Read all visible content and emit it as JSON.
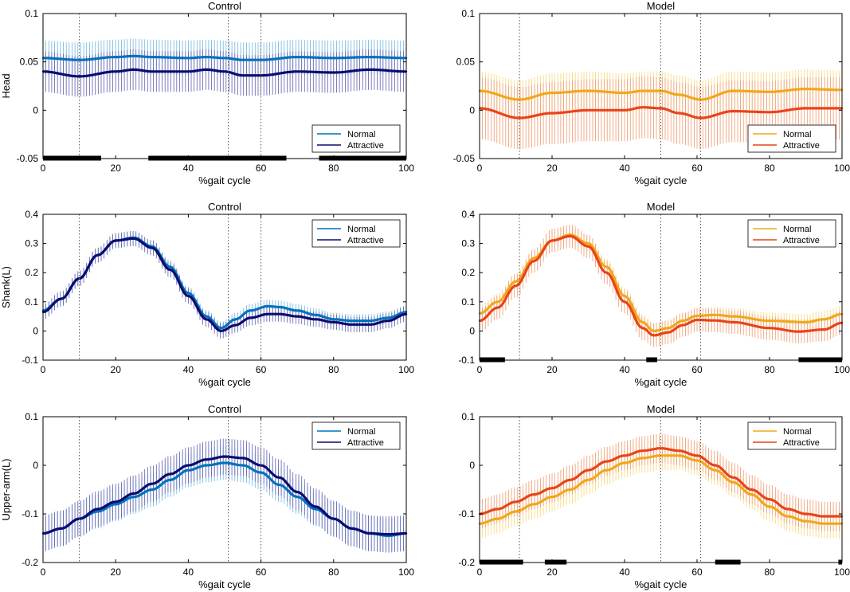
{
  "colors": {
    "control_normal": "#0072bd",
    "control_normal_band": "#6fb6de",
    "control_attractive": "#0c0c6e",
    "control_attractive_band": "#5e5eb0",
    "model_normal": "#f0a81a",
    "model_normal_band": "#f5d77a",
    "model_attractive": "#e8441a",
    "model_attractive_band": "#ee9a6e",
    "marker": "#b0b0b0",
    "bar": "#000000"
  },
  "chart_data": [
    {
      "type": "line",
      "title": "Control",
      "xlabel": "%gait cycle",
      "ylabel": "Head",
      "xlim": [
        0,
        100
      ],
      "ylim": [
        -0.05,
        0.1
      ],
      "xticks": [
        0,
        20,
        40,
        60,
        80,
        100
      ],
      "yticks": [
        -0.05,
        0,
        0.05,
        0.1
      ],
      "ytick_labels": [
        "-0.05",
        "0",
        "0.05",
        "0.1"
      ],
      "legend": {
        "position": "bottom-right",
        "entries": [
          "Normal",
          "Attractive"
        ]
      },
      "vlines": [
        10,
        51,
        60
      ],
      "sig_bars": [
        [
          0,
          16
        ],
        [
          29,
          67
        ],
        [
          76,
          100
        ]
      ],
      "series": [
        {
          "name": "Normal",
          "color_key": "control_normal",
          "band_key": "control_normal_band",
          "x": [
            0,
            10,
            20,
            25,
            30,
            40,
            45,
            50,
            55,
            60,
            70,
            80,
            90,
            100
          ],
          "y": [
            0.054,
            0.052,
            0.055,
            0.056,
            0.055,
            0.054,
            0.055,
            0.054,
            0.052,
            0.052,
            0.055,
            0.054,
            0.055,
            0.054
          ],
          "sd": 0.018
        },
        {
          "name": "Attractive",
          "color_key": "control_attractive",
          "band_key": "control_attractive_band",
          "x": [
            0,
            10,
            20,
            25,
            30,
            40,
            45,
            50,
            55,
            60,
            70,
            80,
            90,
            100
          ],
          "y": [
            0.04,
            0.035,
            0.04,
            0.042,
            0.04,
            0.04,
            0.042,
            0.04,
            0.036,
            0.036,
            0.04,
            0.039,
            0.042,
            0.04
          ],
          "sd": 0.021
        }
      ]
    },
    {
      "type": "line",
      "title": "Model",
      "xlabel": "%gait cycle",
      "ylabel": "",
      "xlim": [
        0,
        100
      ],
      "ylim": [
        -0.05,
        0.1
      ],
      "xticks": [
        0,
        20,
        40,
        60,
        80,
        100
      ],
      "yticks": [
        -0.05,
        0,
        0.05,
        0.1
      ],
      "ytick_labels": [
        "-0.05",
        "0",
        "0.05",
        "0.1"
      ],
      "legend": {
        "position": "bottom-right",
        "entries": [
          "Normal",
          "Attractive"
        ]
      },
      "vlines": [
        11,
        50,
        61
      ],
      "sig_bars": [],
      "series": [
        {
          "name": "Normal",
          "color_key": "model_normal",
          "band_key": "model_normal_band",
          "x": [
            0,
            11,
            20,
            30,
            40,
            45,
            50,
            55,
            61,
            70,
            80,
            90,
            100
          ],
          "y": [
            0.02,
            0.011,
            0.018,
            0.02,
            0.018,
            0.02,
            0.02,
            0.016,
            0.011,
            0.02,
            0.019,
            0.022,
            0.021
          ],
          "sd": 0.02
        },
        {
          "name": "Attractive",
          "color_key": "model_attractive",
          "band_key": "model_attractive_band",
          "x": [
            0,
            11,
            20,
            30,
            40,
            45,
            50,
            55,
            61,
            70,
            80,
            90,
            100
          ],
          "y": [
            0.002,
            -0.008,
            -0.003,
            0,
            0,
            0.003,
            0.002,
            -0.003,
            -0.008,
            -0.001,
            -0.002,
            0.002,
            0.002
          ],
          "sd": 0.032
        }
      ]
    },
    {
      "type": "line",
      "title": "Control",
      "xlabel": "%gait cycle",
      "ylabel": "Shank(L)",
      "xlim": [
        0,
        100
      ],
      "ylim": [
        -0.1,
        0.4
      ],
      "xticks": [
        0,
        20,
        40,
        60,
        80,
        100
      ],
      "yticks": [
        -0.1,
        0,
        0.1,
        0.2,
        0.3,
        0.4
      ],
      "ytick_labels": [
        "-0.1",
        "0",
        "0.1",
        "0.2",
        "0.3",
        "0.4"
      ],
      "legend": {
        "position": "top-right",
        "entries": [
          "Normal",
          "Attractive"
        ]
      },
      "vlines": [
        10,
        51,
        60
      ],
      "sig_bars": [],
      "series": [
        {
          "name": "Normal",
          "color_key": "control_normal",
          "band_key": "control_normal_band",
          "x": [
            0,
            5,
            10,
            15,
            20,
            25,
            30,
            35,
            40,
            45,
            49,
            53,
            57,
            62,
            65,
            70,
            75,
            80,
            85,
            90,
            95,
            100
          ],
          "y": [
            0.07,
            0.11,
            0.18,
            0.26,
            0.31,
            0.32,
            0.29,
            0.22,
            0.13,
            0.05,
            0.01,
            0.04,
            0.07,
            0.085,
            0.082,
            0.07,
            0.055,
            0.04,
            0.035,
            0.035,
            0.045,
            0.065
          ],
          "sd": 0.022
        },
        {
          "name": "Attractive",
          "color_key": "control_attractive",
          "band_key": "control_attractive_band",
          "x": [
            0,
            5,
            10,
            15,
            20,
            25,
            30,
            35,
            40,
            45,
            49,
            53,
            57,
            62,
            65,
            70,
            75,
            80,
            85,
            90,
            95,
            100
          ],
          "y": [
            0.065,
            0.11,
            0.18,
            0.26,
            0.31,
            0.317,
            0.285,
            0.21,
            0.12,
            0.04,
            0.0,
            0.02,
            0.045,
            0.058,
            0.058,
            0.05,
            0.04,
            0.03,
            0.022,
            0.022,
            0.035,
            0.058
          ],
          "sd": 0.026
        }
      ]
    },
    {
      "type": "line",
      "title": "Model",
      "xlabel": "%gait cycle",
      "ylabel": "",
      "xlim": [
        0,
        100
      ],
      "ylim": [
        -0.1,
        0.4
      ],
      "xticks": [
        0,
        20,
        40,
        60,
        80,
        100
      ],
      "yticks": [
        -0.1,
        0,
        0.1,
        0.2,
        0.3,
        0.4
      ],
      "ytick_labels": [
        "-0.1",
        "0",
        "0.1",
        "0.2",
        "0.3",
        "0.4"
      ],
      "legend": {
        "position": "top-right",
        "entries": [
          "Normal",
          "Attractive"
        ]
      },
      "vlines": [
        11,
        50,
        61
      ],
      "sig_bars": [
        [
          0,
          7
        ],
        [
          46,
          49
        ],
        [
          88,
          100
        ]
      ],
      "series": [
        {
          "name": "Normal",
          "color_key": "model_normal",
          "band_key": "model_normal_band",
          "x": [
            0,
            5,
            10,
            15,
            20,
            25,
            30,
            35,
            40,
            45,
            48,
            52,
            56,
            60,
            65,
            70,
            80,
            90,
            95,
            100
          ],
          "y": [
            0.06,
            0.1,
            0.17,
            0.25,
            0.31,
            0.33,
            0.3,
            0.22,
            0.12,
            0.03,
            0.0,
            0.01,
            0.035,
            0.052,
            0.055,
            0.05,
            0.035,
            0.03,
            0.04,
            0.058
          ],
          "sd": 0.028
        },
        {
          "name": "Attractive",
          "color_key": "model_attractive",
          "band_key": "model_attractive_band",
          "x": [
            0,
            5,
            10,
            15,
            20,
            25,
            30,
            35,
            40,
            45,
            48,
            52,
            56,
            60,
            65,
            70,
            80,
            88,
            95,
            100
          ],
          "y": [
            0.035,
            0.08,
            0.155,
            0.24,
            0.31,
            0.325,
            0.29,
            0.2,
            0.1,
            0.01,
            -0.015,
            -0.005,
            0.02,
            0.038,
            0.036,
            0.03,
            0.01,
            -0.002,
            0.005,
            0.028
          ],
          "sd": 0.04
        }
      ]
    },
    {
      "type": "line",
      "title": "Control",
      "xlabel": "%gait cycle",
      "ylabel": "Upper-arm(L)",
      "xlim": [
        0,
        100
      ],
      "ylim": [
        -0.2,
        0.1
      ],
      "xticks": [
        0,
        20,
        40,
        60,
        80,
        100
      ],
      "yticks": [
        -0.2,
        -0.1,
        0,
        0.1
      ],
      "ytick_labels": [
        "-0.2",
        "-0.1",
        "0",
        "0.1"
      ],
      "legend": {
        "position": "top-right",
        "entries": [
          "Normal",
          "Attractive"
        ]
      },
      "vlines": [
        10,
        51,
        60
      ],
      "sig_bars": [],
      "series": [
        {
          "name": "Normal",
          "color_key": "control_normal",
          "band_key": "control_normal_band",
          "x": [
            0,
            5,
            10,
            15,
            20,
            25,
            30,
            35,
            40,
            45,
            50,
            55,
            60,
            65,
            70,
            75,
            80,
            85,
            90,
            95,
            100
          ],
          "y": [
            -0.14,
            -0.13,
            -0.11,
            -0.095,
            -0.08,
            -0.065,
            -0.05,
            -0.03,
            -0.01,
            0.0,
            0.005,
            0.0,
            -0.015,
            -0.04,
            -0.065,
            -0.09,
            -0.11,
            -0.13,
            -0.14,
            -0.145,
            -0.14
          ],
          "sd": 0.035
        },
        {
          "name": "Attractive",
          "color_key": "control_attractive",
          "band_key": "control_attractive_band",
          "x": [
            0,
            5,
            10,
            15,
            20,
            25,
            30,
            35,
            40,
            45,
            50,
            55,
            60,
            65,
            70,
            75,
            80,
            85,
            90,
            95,
            100
          ],
          "y": [
            -0.14,
            -0.13,
            -0.11,
            -0.09,
            -0.075,
            -0.058,
            -0.038,
            -0.018,
            0.0,
            0.012,
            0.018,
            0.015,
            0.0,
            -0.025,
            -0.055,
            -0.085,
            -0.11,
            -0.13,
            -0.14,
            -0.142,
            -0.14
          ],
          "sd": 0.037
        }
      ]
    },
    {
      "type": "line",
      "title": "Model",
      "xlabel": "%gait cycle",
      "ylabel": "",
      "xlim": [
        0,
        100
      ],
      "ylim": [
        -0.2,
        0.1
      ],
      "xticks": [
        0,
        20,
        40,
        60,
        80,
        100
      ],
      "yticks": [
        -0.2,
        -0.1,
        0,
        0.1
      ],
      "ytick_labels": [
        "-0.2",
        "-0.1",
        "0",
        "0.1"
      ],
      "legend": {
        "position": "top-right",
        "entries": [
          "Normal",
          "Attractive"
        ]
      },
      "vlines": [
        11,
        50,
        61
      ],
      "sig_bars": [
        [
          0,
          12
        ],
        [
          18,
          24
        ],
        [
          65,
          72
        ],
        [
          99,
          100
        ]
      ],
      "series": [
        {
          "name": "Normal",
          "color_key": "model_normal",
          "band_key": "model_normal_band",
          "x": [
            0,
            5,
            10,
            15,
            20,
            25,
            30,
            35,
            40,
            45,
            50,
            55,
            60,
            65,
            70,
            75,
            80,
            85,
            90,
            95,
            100
          ],
          "y": [
            -0.12,
            -0.11,
            -0.095,
            -0.08,
            -0.065,
            -0.05,
            -0.03,
            -0.01,
            0.005,
            0.015,
            0.02,
            0.02,
            0.01,
            -0.01,
            -0.035,
            -0.06,
            -0.085,
            -0.105,
            -0.115,
            -0.12,
            -0.12
          ],
          "sd": 0.03
        },
        {
          "name": "Attractive",
          "color_key": "model_attractive",
          "band_key": "model_attractive_band",
          "x": [
            0,
            5,
            10,
            15,
            20,
            25,
            30,
            35,
            40,
            45,
            50,
            55,
            60,
            65,
            70,
            75,
            80,
            85,
            90,
            95,
            100
          ],
          "y": [
            -0.1,
            -0.09,
            -0.075,
            -0.06,
            -0.047,
            -0.03,
            -0.01,
            0.008,
            0.02,
            0.03,
            0.035,
            0.03,
            0.02,
            0.0,
            -0.025,
            -0.05,
            -0.07,
            -0.09,
            -0.1,
            -0.105,
            -0.105
          ],
          "sd": 0.03
        }
      ]
    }
  ]
}
